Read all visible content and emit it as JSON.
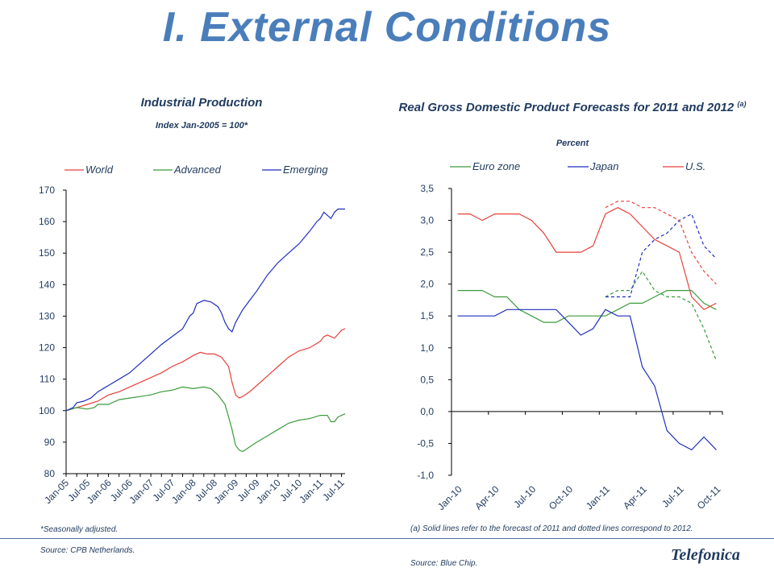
{
  "title": "I. External Conditions",
  "chart_data": [
    {
      "type": "line",
      "title": "Industrial Production",
      "subtitle": "Index Jan-2005 = 100*",
      "legend": [
        "World",
        "Advanced",
        "Emerging"
      ],
      "legend_position": "top",
      "ylim": [
        80,
        170
      ],
      "yticks": [
        "80",
        "90",
        "100",
        "110",
        "120",
        "130",
        "140",
        "150",
        "160",
        "170"
      ],
      "xticks": [
        "Jan-05",
        "Jul-05",
        "Jan-06",
        "Jul-06",
        "Jan-07",
        "Jul-07",
        "Jan-08",
        "Jul-08",
        "Jan-09",
        "Jul-09",
        "Jan-10",
        "Jul-10",
        "Jan-11",
        "Jul-11"
      ],
      "x_month_index": [
        0,
        6,
        12,
        18,
        24,
        30,
        36,
        42,
        48,
        54,
        60,
        66,
        72,
        78
      ],
      "series": [
        {
          "name": "World",
          "color": "#e8403a",
          "points": [
            [
              0,
              100
            ],
            [
              3,
              101
            ],
            [
              6,
              102
            ],
            [
              9,
              103
            ],
            [
              12,
              105
            ],
            [
              15,
              106
            ],
            [
              18,
              107.5
            ],
            [
              21,
              109
            ],
            [
              24,
              110.5
            ],
            [
              27,
              112
            ],
            [
              30,
              114
            ],
            [
              33,
              115.5
            ],
            [
              36,
              117.5
            ],
            [
              38,
              118.5
            ],
            [
              40,
              118
            ],
            [
              42,
              118
            ],
            [
              44,
              117
            ],
            [
              46,
              114
            ],
            [
              47,
              109
            ],
            [
              48,
              105
            ],
            [
              49,
              104
            ],
            [
              50,
              104.5
            ],
            [
              52,
              106
            ],
            [
              54,
              108
            ],
            [
              57,
              111
            ],
            [
              60,
              114
            ],
            [
              63,
              117
            ],
            [
              66,
              119
            ],
            [
              69,
              120
            ],
            [
              72,
              122
            ],
            [
              73,
              123.5
            ],
            [
              74,
              124
            ],
            [
              76,
              123
            ],
            [
              78,
              125.5
            ],
            [
              79,
              126
            ]
          ]
        },
        {
          "name": "Advanced",
          "color": "#3b9b3b",
          "points": [
            [
              0,
              100
            ],
            [
              3,
              101
            ],
            [
              6,
              100.5
            ],
            [
              8,
              101
            ],
            [
              9,
              102
            ],
            [
              12,
              102
            ],
            [
              15,
              103.5
            ],
            [
              18,
              104
            ],
            [
              21,
              104.5
            ],
            [
              24,
              105
            ],
            [
              27,
              106
            ],
            [
              30,
              106.5
            ],
            [
              33,
              107.5
            ],
            [
              36,
              107
            ],
            [
              39,
              107.5
            ],
            [
              41,
              107
            ],
            [
              43,
              105
            ],
            [
              45,
              102
            ],
            [
              46,
              98
            ],
            [
              47,
              94
            ],
            [
              48,
              89
            ],
            [
              49,
              87.5
            ],
            [
              50,
              87
            ],
            [
              52,
              88.5
            ],
            [
              54,
              90
            ],
            [
              57,
              92
            ],
            [
              60,
              94
            ],
            [
              63,
              96
            ],
            [
              66,
              97
            ],
            [
              69,
              97.5
            ],
            [
              72,
              98.5
            ],
            [
              74,
              98.5
            ],
            [
              75,
              96.5
            ],
            [
              76,
              96.5
            ],
            [
              77,
              98
            ],
            [
              79,
              99
            ]
          ]
        },
        {
          "name": "Emerging",
          "color": "#1f2fbd",
          "points": [
            [
              0,
              100
            ],
            [
              2,
              101
            ],
            [
              3,
              102.5
            ],
            [
              5,
              103
            ],
            [
              7,
              104
            ],
            [
              9,
              106
            ],
            [
              12,
              108
            ],
            [
              15,
              110
            ],
            [
              18,
              112
            ],
            [
              21,
              115
            ],
            [
              24,
              118
            ],
            [
              27,
              121
            ],
            [
              30,
              123.5
            ],
            [
              33,
              126
            ],
            [
              35,
              130
            ],
            [
              36,
              131
            ],
            [
              37,
              134
            ],
            [
              39,
              135
            ],
            [
              41,
              134.5
            ],
            [
              43,
              133
            ],
            [
              44,
              131
            ],
            [
              45,
              128
            ],
            [
              46,
              126
            ],
            [
              47,
              125
            ],
            [
              48,
              128
            ],
            [
              50,
              132
            ],
            [
              52,
              135
            ],
            [
              54,
              138
            ],
            [
              57,
              143
            ],
            [
              60,
              147
            ],
            [
              63,
              150
            ],
            [
              66,
              153
            ],
            [
              69,
              157
            ],
            [
              71,
              160
            ],
            [
              72,
              161
            ],
            [
              73,
              163
            ],
            [
              74,
              162
            ],
            [
              75,
              161
            ],
            [
              76,
              163
            ],
            [
              77,
              164
            ],
            [
              79,
              164
            ]
          ]
        }
      ]
    },
    {
      "type": "line",
      "title": "Real Gross Domestic Product Forecasts for 2011 and 2012",
      "title_note": "(a)",
      "subtitle": "Percent",
      "legend": [
        "Euro zone",
        "Japan",
        "U.S."
      ],
      "legend_position": "top",
      "ylim": [
        -1.0,
        3.5
      ],
      "yticks": [
        "-1,0",
        "-0,5",
        "0,0",
        "0,5",
        "1,0",
        "1,5",
        "2,0",
        "2,5",
        "3,0",
        "3,5"
      ],
      "xticks": [
        "Jan-10",
        "Apr-10",
        "Jul-10",
        "Oct-10",
        "Jan-11",
        "Apr-11",
        "Jul-11",
        "Oct-11"
      ],
      "x_month_index": [
        0,
        3,
        6,
        9,
        12,
        15,
        18,
        21
      ],
      "series": [
        {
          "name": "Euro zone",
          "color": "#3b9b3b",
          "forecast_2011": [
            [
              0,
              1.9
            ],
            [
              1,
              1.9
            ],
            [
              2,
              1.9
            ],
            [
              3,
              1.8
            ],
            [
              4,
              1.8
            ],
            [
              5,
              1.6
            ],
            [
              6,
              1.5
            ],
            [
              7,
              1.4
            ],
            [
              8,
              1.4
            ],
            [
              9,
              1.5
            ],
            [
              10,
              1.5
            ],
            [
              11,
              1.5
            ],
            [
              12,
              1.5
            ],
            [
              13,
              1.6
            ],
            [
              14,
              1.7
            ],
            [
              15,
              1.7
            ],
            [
              16,
              1.8
            ],
            [
              17,
              1.9
            ],
            [
              18,
              1.9
            ],
            [
              19,
              1.9
            ],
            [
              20,
              1.7
            ],
            [
              21,
              1.6
            ]
          ],
          "forecast_2012": [
            [
              12,
              1.8
            ],
            [
              13,
              1.9
            ],
            [
              14,
              1.9
            ],
            [
              15,
              2.2
            ],
            [
              16,
              1.9
            ],
            [
              17,
              1.8
            ],
            [
              18,
              1.8
            ],
            [
              19,
              1.7
            ],
            [
              20,
              1.3
            ],
            [
              21,
              0.8
            ]
          ]
        },
        {
          "name": "Japan",
          "color": "#1f2fbd",
          "forecast_2011": [
            [
              0,
              1.5
            ],
            [
              1,
              1.5
            ],
            [
              2,
              1.5
            ],
            [
              3,
              1.5
            ],
            [
              4,
              1.6
            ],
            [
              5,
              1.6
            ],
            [
              6,
              1.6
            ],
            [
              7,
              1.6
            ],
            [
              8,
              1.6
            ],
            [
              9,
              1.4
            ],
            [
              10,
              1.2
            ],
            [
              11,
              1.3
            ],
            [
              12,
              1.6
            ],
            [
              13,
              1.5
            ],
            [
              14,
              1.5
            ],
            [
              15,
              0.7
            ],
            [
              16,
              0.4
            ],
            [
              17,
              -0.3
            ],
            [
              18,
              -0.5
            ],
            [
              19,
              -0.6
            ],
            [
              20,
              -0.4
            ],
            [
              21,
              -0.6
            ]
          ],
          "forecast_2012": [
            [
              12,
              1.8
            ],
            [
              13,
              1.8
            ],
            [
              14,
              1.8
            ],
            [
              15,
              2.5
            ],
            [
              16,
              2.7
            ],
            [
              17,
              2.8
            ],
            [
              18,
              3.0
            ],
            [
              19,
              3.1
            ],
            [
              20,
              2.6
            ],
            [
              21,
              2.4
            ]
          ]
        },
        {
          "name": "U.S.",
          "color": "#e8403a",
          "forecast_2011": [
            [
              0,
              3.1
            ],
            [
              1,
              3.1
            ],
            [
              2,
              3.0
            ],
            [
              3,
              3.1
            ],
            [
              4,
              3.1
            ],
            [
              5,
              3.1
            ],
            [
              6,
              3.0
            ],
            [
              7,
              2.8
            ],
            [
              8,
              2.5
            ],
            [
              9,
              2.5
            ],
            [
              10,
              2.5
            ],
            [
              11,
              2.6
            ],
            [
              12,
              3.1
            ],
            [
              13,
              3.2
            ],
            [
              14,
              3.1
            ],
            [
              15,
              2.9
            ],
            [
              16,
              2.7
            ],
            [
              17,
              2.6
            ],
            [
              18,
              2.5
            ],
            [
              19,
              1.8
            ],
            [
              20,
              1.6
            ],
            [
              21,
              1.7
            ]
          ],
          "forecast_2012": [
            [
              12,
              3.2
            ],
            [
              13,
              3.3
            ],
            [
              14,
              3.3
            ],
            [
              15,
              3.2
            ],
            [
              16,
              3.2
            ],
            [
              17,
              3.1
            ],
            [
              18,
              3.0
            ],
            [
              19,
              2.5
            ],
            [
              20,
              2.2
            ],
            [
              21,
              2.0
            ]
          ]
        }
      ]
    }
  ],
  "notes": {
    "left_footnote": "*Seasonally adjusted.",
    "left_source": "Source: CPB Netherlands.",
    "right_footnote": "(a) Solid lines refer to the forecast of 2011 and dotted lines correspond to 2012.",
    "right_source": "Source: Blue Chip."
  },
  "logo": "Telefonica"
}
